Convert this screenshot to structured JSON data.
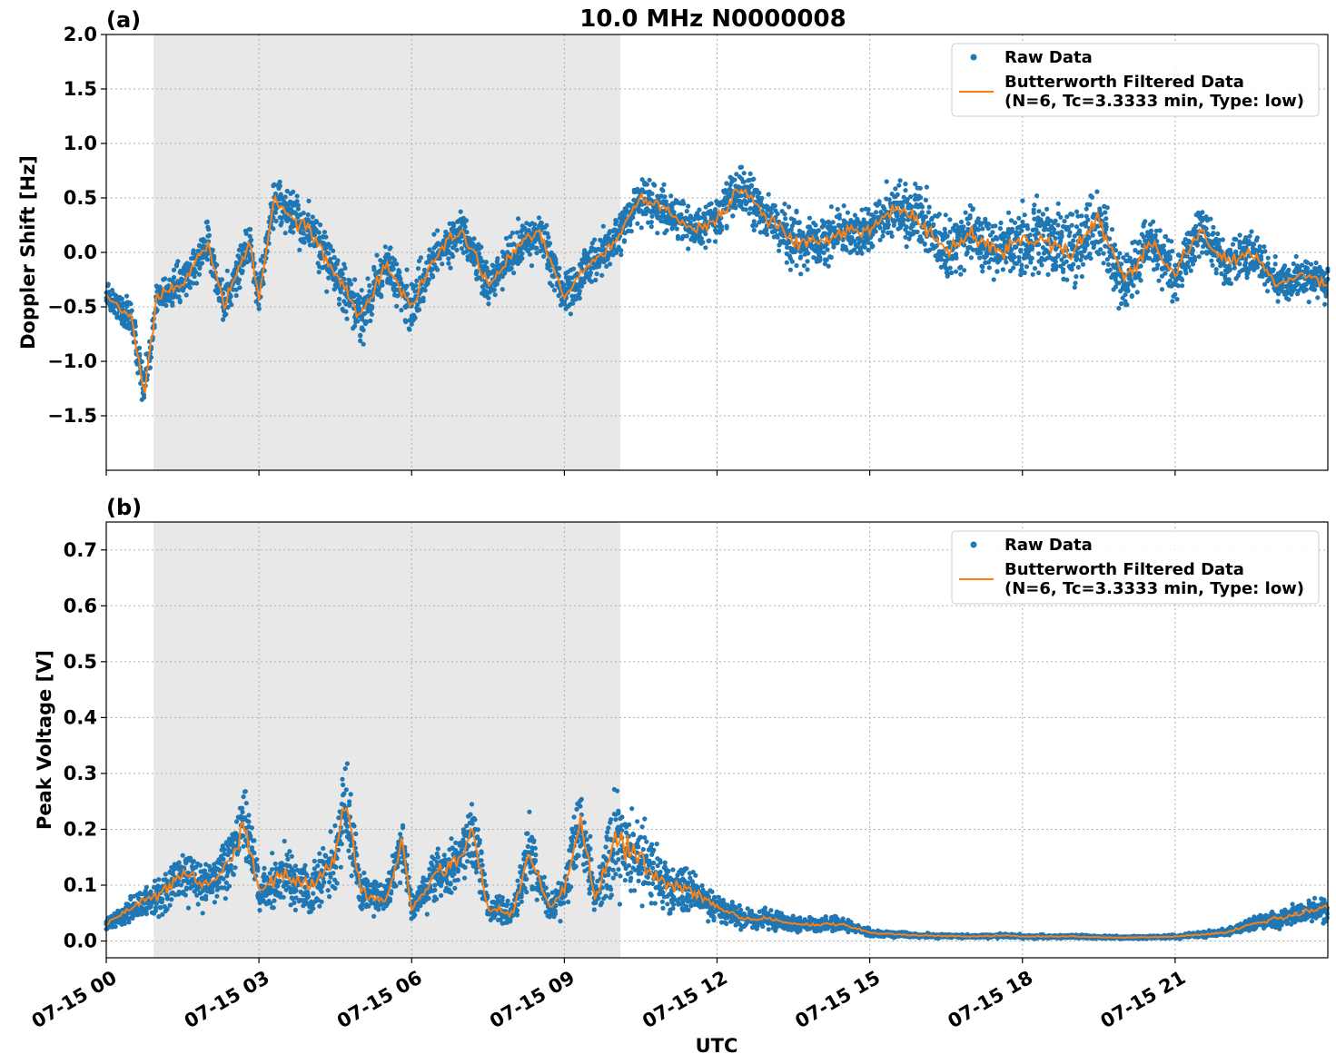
{
  "chart_data": [
    {
      "type": "scatter",
      "panel_label": "(a)",
      "title": "10.0 MHz N0000008",
      "ylabel": "Doppler Shift [Hz]",
      "xlabel": "",
      "xlim": [
        0,
        24
      ],
      "ylim": [
        -2.0,
        2.0
      ],
      "yticks": [
        -1.5,
        -1.0,
        -0.5,
        0.0,
        0.5,
        1.0,
        1.5,
        2.0
      ],
      "ytick_labels": [
        "−1.5",
        "−1.0",
        "−0.5",
        "0.0",
        "0.5",
        "1.0",
        "1.5",
        "2.0"
      ],
      "grid": true,
      "legend_position": "top-right",
      "shaded_region": {
        "x_start": 0.93,
        "x_end": 10.1,
        "color": "#e8e8e8"
      },
      "series": [
        {
          "name": "Raw Data",
          "kind": "scatter",
          "color": "#1f77b4",
          "x": [
            0,
            0.5,
            0.75,
            1,
            1.5,
            2,
            2.3,
            2.8,
            3,
            3.3,
            3.7,
            4,
            4.5,
            5,
            5.5,
            6,
            6.5,
            7,
            7.5,
            8,
            8.5,
            9,
            9.5,
            10,
            10.5,
            11,
            11.5,
            12,
            12.5,
            13,
            13.5,
            14,
            14.5,
            15,
            15.5,
            16,
            16.5,
            17,
            17.5,
            18,
            18.5,
            19,
            19.5,
            20,
            20.5,
            21,
            21.5,
            22,
            22.5,
            23,
            23.5,
            24
          ],
          "y": [
            -0.4,
            -0.6,
            -1.3,
            -0.4,
            -0.3,
            0.1,
            -0.5,
            0.1,
            -0.4,
            0.5,
            0.3,
            0.2,
            -0.2,
            -0.6,
            -0.1,
            -0.5,
            0.0,
            0.2,
            -0.3,
            0.0,
            0.2,
            -0.4,
            -0.1,
            0.1,
            0.5,
            0.4,
            0.2,
            0.3,
            0.6,
            0.3,
            0.1,
            0.1,
            0.2,
            0.2,
            0.4,
            0.3,
            0.0,
            0.2,
            0.0,
            0.1,
            0.1,
            0.0,
            0.3,
            -0.3,
            0.1,
            -0.2,
            0.2,
            -0.1,
            0.0,
            -0.3,
            -0.2,
            -0.3
          ],
          "spread": [
            0.2,
            0.3,
            0.3,
            0.25,
            0.3,
            0.3,
            0.3,
            0.3,
            0.3,
            0.35,
            0.35,
            0.35,
            0.4,
            0.4,
            0.35,
            0.4,
            0.3,
            0.3,
            0.3,
            0.3,
            0.35,
            0.3,
            0.3,
            0.3,
            0.3,
            0.3,
            0.3,
            0.35,
            0.35,
            0.35,
            0.4,
            0.35,
            0.35,
            0.35,
            0.4,
            0.45,
            0.45,
            0.45,
            0.5,
            0.5,
            0.5,
            0.5,
            0.5,
            0.45,
            0.4,
            0.35,
            0.35,
            0.35,
            0.35,
            0.3,
            0.3,
            0.3
          ]
        },
        {
          "name": "Butterworth Filtered Data\n(N=6, Tc=3.3333 min, Type: low)",
          "kind": "line",
          "color": "#ff7f0e",
          "x": [
            0,
            0.5,
            0.75,
            1,
            1.5,
            2,
            2.3,
            2.8,
            3,
            3.3,
            3.7,
            4,
            4.5,
            5,
            5.5,
            6,
            6.5,
            7,
            7.5,
            8,
            8.5,
            9,
            9.5,
            10,
            10.5,
            11,
            11.5,
            12,
            12.5,
            13,
            13.5,
            14,
            14.5,
            15,
            15.5,
            16,
            16.5,
            17,
            17.5,
            18,
            18.5,
            19,
            19.5,
            20,
            20.5,
            21,
            21.5,
            22,
            22.5,
            23,
            23.5,
            24
          ],
          "y": [
            -0.4,
            -0.6,
            -1.3,
            -0.4,
            -0.3,
            0.1,
            -0.5,
            0.1,
            -0.4,
            0.5,
            0.3,
            0.2,
            -0.2,
            -0.6,
            -0.1,
            -0.5,
            0.0,
            0.2,
            -0.3,
            0.0,
            0.2,
            -0.4,
            -0.1,
            0.1,
            0.5,
            0.4,
            0.2,
            0.3,
            0.6,
            0.3,
            0.1,
            0.1,
            0.2,
            0.2,
            0.4,
            0.3,
            0.0,
            0.2,
            0.0,
            0.1,
            0.1,
            0.0,
            0.3,
            -0.3,
            0.1,
            -0.2,
            0.2,
            -0.1,
            0.0,
            -0.3,
            -0.2,
            -0.3
          ]
        }
      ]
    },
    {
      "type": "scatter",
      "panel_label": "(b)",
      "title": "",
      "ylabel": "Peak Voltage [V]",
      "xlabel": "UTC",
      "xlim": [
        0,
        24
      ],
      "ylim": [
        -0.03,
        0.75
      ],
      "yticks": [
        0.0,
        0.1,
        0.2,
        0.3,
        0.4,
        0.5,
        0.6,
        0.7
      ],
      "ytick_labels": [
        "0.0",
        "0.1",
        "0.2",
        "0.3",
        "0.4",
        "0.5",
        "0.6",
        "0.7"
      ],
      "xticks": [
        0,
        3,
        6,
        9,
        12,
        15,
        18,
        21
      ],
      "xtick_labels": [
        "07-15 00",
        "07-15 03",
        "07-15 06",
        "07-15 09",
        "07-15 12",
        "07-15 15",
        "07-15 18",
        "07-15 21"
      ],
      "grid": true,
      "legend_position": "top-right",
      "shaded_region": {
        "x_start": 0.93,
        "x_end": 10.1,
        "color": "#e8e8e8"
      },
      "series": [
        {
          "name": "Raw Data",
          "kind": "scatter",
          "color": "#1f77b4",
          "x": [
            0,
            0.5,
            1,
            1.5,
            2,
            2.5,
            2.7,
            3,
            3.5,
            4,
            4.5,
            4.7,
            5,
            5.5,
            5.8,
            6,
            6.5,
            7,
            7.2,
            7.5,
            8,
            8.3,
            8.7,
            9,
            9.3,
            9.6,
            10,
            10.5,
            11,
            11.5,
            12,
            12.5,
            13,
            13.5,
            14,
            14.5,
            15,
            15.5,
            16,
            17,
            17.7,
            18,
            19,
            20,
            21,
            22,
            22.5,
            23,
            23.5,
            24
          ],
          "y": [
            0.03,
            0.06,
            0.08,
            0.12,
            0.1,
            0.15,
            0.22,
            0.09,
            0.12,
            0.09,
            0.15,
            0.25,
            0.09,
            0.07,
            0.18,
            0.06,
            0.12,
            0.15,
            0.2,
            0.06,
            0.05,
            0.16,
            0.06,
            0.09,
            0.22,
            0.08,
            0.18,
            0.15,
            0.1,
            0.09,
            0.06,
            0.04,
            0.04,
            0.03,
            0.03,
            0.03,
            0.015,
            0.012,
            0.01,
            0.008,
            0.01,
            0.008,
            0.008,
            0.006,
            0.008,
            0.015,
            0.03,
            0.04,
            0.05,
            0.06
          ],
          "spread": [
            0.02,
            0.04,
            0.05,
            0.07,
            0.06,
            0.09,
            0.12,
            0.06,
            0.08,
            0.07,
            0.1,
            0.14,
            0.06,
            0.05,
            0.1,
            0.04,
            0.08,
            0.1,
            0.12,
            0.04,
            0.04,
            0.1,
            0.04,
            0.06,
            0.14,
            0.06,
            0.14,
            0.12,
            0.07,
            0.06,
            0.04,
            0.03,
            0.025,
            0.02,
            0.02,
            0.02,
            0.01,
            0.008,
            0.006,
            0.005,
            0.006,
            0.005,
            0.005,
            0.004,
            0.005,
            0.01,
            0.02,
            0.025,
            0.03,
            0.04
          ]
        },
        {
          "name": "Butterworth Filtered Data\n(N=6, Tc=3.3333 min, Type: low)",
          "kind": "line",
          "color": "#ff7f0e",
          "x": [
            0,
            0.5,
            1,
            1.5,
            2,
            2.5,
            2.7,
            3,
            3.5,
            4,
            4.5,
            4.7,
            5,
            5.5,
            5.8,
            6,
            6.5,
            7,
            7.2,
            7.5,
            8,
            8.3,
            8.7,
            9,
            9.3,
            9.6,
            10,
            10.5,
            11,
            11.5,
            12,
            12.5,
            13,
            13.5,
            14,
            14.5,
            15,
            15.5,
            16,
            17,
            17.7,
            18,
            19,
            20,
            21,
            22,
            22.5,
            23,
            23.5,
            24
          ],
          "y": [
            0.03,
            0.06,
            0.08,
            0.12,
            0.1,
            0.15,
            0.22,
            0.09,
            0.12,
            0.09,
            0.15,
            0.25,
            0.09,
            0.07,
            0.18,
            0.06,
            0.12,
            0.15,
            0.2,
            0.06,
            0.05,
            0.16,
            0.06,
            0.09,
            0.22,
            0.08,
            0.18,
            0.15,
            0.1,
            0.09,
            0.06,
            0.04,
            0.04,
            0.03,
            0.03,
            0.03,
            0.015,
            0.012,
            0.01,
            0.008,
            0.01,
            0.008,
            0.008,
            0.006,
            0.008,
            0.015,
            0.03,
            0.04,
            0.05,
            0.06
          ]
        }
      ]
    }
  ]
}
